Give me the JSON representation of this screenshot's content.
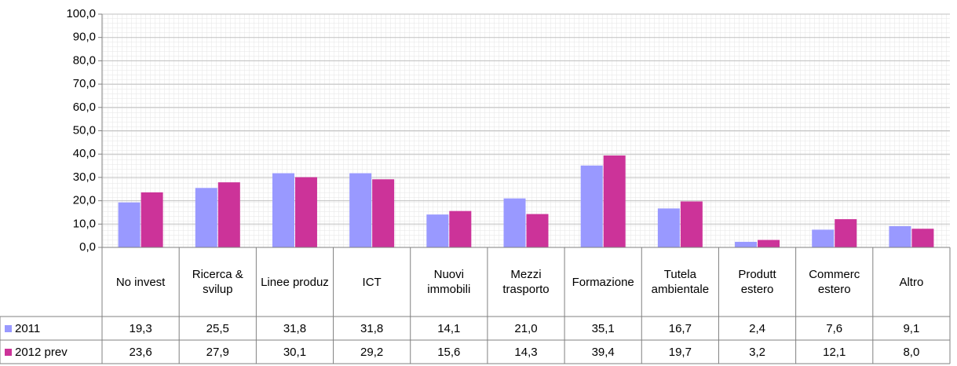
{
  "chart_data": {
    "type": "bar",
    "categories": [
      "No invest",
      "Ricerca & svilup",
      "Linee produz",
      "ICT",
      "Nuovi immobili",
      "Mezzi trasporto",
      "Formazione",
      "Tutela ambientale",
      "Produtt estero",
      "Commerc estero",
      "Altro"
    ],
    "series": [
      {
        "name": "2011",
        "color": "#9999ff",
        "values": [
          19.3,
          25.5,
          31.8,
          31.8,
          14.1,
          21.0,
          35.1,
          16.7,
          2.4,
          7.6,
          9.1
        ],
        "value_labels": [
          "19,3",
          "25,5",
          "31,8",
          "31,8",
          "14,1",
          "21,0",
          "35,1",
          "16,7",
          "2,4",
          "7,6",
          "9,1"
        ]
      },
      {
        "name": "2012 prev",
        "color": "#cc3399",
        "values": [
          23.6,
          27.9,
          30.1,
          29.2,
          15.6,
          14.3,
          39.4,
          19.7,
          3.2,
          12.1,
          8.0
        ],
        "value_labels": [
          "23,6",
          "27,9",
          "30,1",
          "29,2",
          "15,6",
          "14,3",
          "39,4",
          "19,7",
          "3,2",
          "12,1",
          "8,0"
        ]
      }
    ],
    "ylim": [
      0,
      100
    ],
    "yticks": [
      {
        "value": 0,
        "label": "0,0"
      },
      {
        "value": 10,
        "label": "10,0"
      },
      {
        "value": 20,
        "label": "20,0"
      },
      {
        "value": 30,
        "label": "30,0"
      },
      {
        "value": 40,
        "label": "40,0"
      },
      {
        "value": 50,
        "label": "50,0"
      },
      {
        "value": 60,
        "label": "60,0"
      },
      {
        "value": 70,
        "label": "70,0"
      },
      {
        "value": 80,
        "label": "80,0"
      },
      {
        "value": 90,
        "label": "90,0"
      },
      {
        "value": 100,
        "label": "100,0"
      }
    ],
    "grid": true
  }
}
